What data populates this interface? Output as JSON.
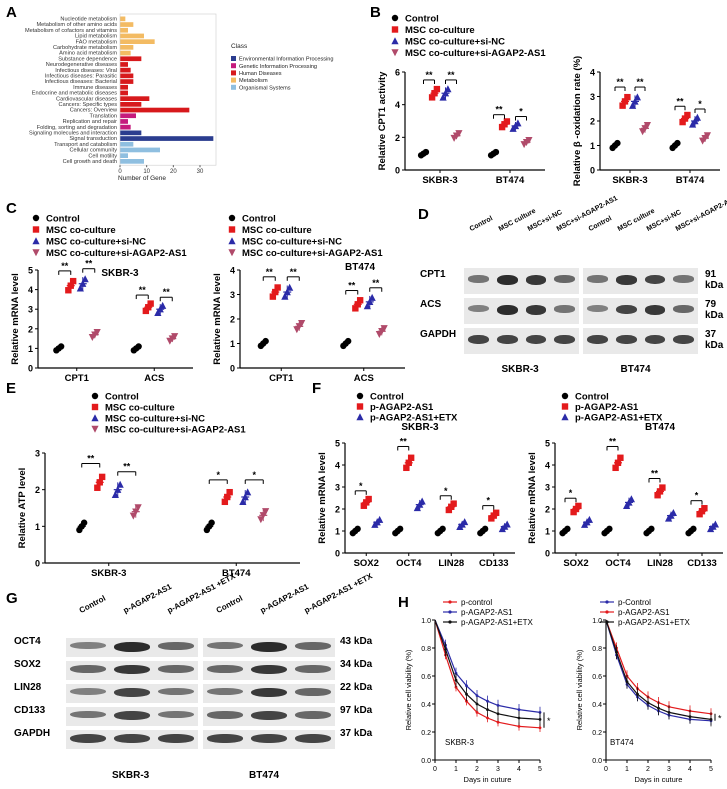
{
  "colors": {
    "control": "#000000",
    "msc": "#e31a1c",
    "sinc": "#2b2ba8",
    "si": "#b04a6a",
    "blue": "#2b2ba8"
  },
  "panels": [
    "A",
    "B",
    "C",
    "D",
    "E",
    "F",
    "G",
    "H"
  ],
  "kegg": {
    "legend_title": "Class",
    "classes": [
      "Environmental Information Processing",
      "Genetic Information Processing",
      "Human Diseases",
      "Metabolism",
      "Organismal Systems"
    ],
    "class_colors": [
      "#2b3d8f",
      "#c51b7d",
      "#d7191c",
      "#f3bb63",
      "#8fbfe0"
    ],
    "xlabel": "Number of Gene",
    "xticks": [
      "0",
      "10",
      "20",
      "30"
    ]
  },
  "chart_data": [
    {
      "panel": "A",
      "type": "bar",
      "orientation": "horizontal",
      "xlim": [
        0,
        36
      ],
      "categories": [
        "Nucleotide metabolism",
        "Metabolism of other amino acids",
        "Metabolism of cofactors and vitamins",
        "Lipid metabolism",
        "FAO metabolism",
        "Carbohydrate metabolism",
        "Amino acid metabolism",
        "Substance dependence",
        "Neurodegenerative diseases",
        "Infectious diseases: Viral",
        "Infectious diseases: Parasitic",
        "Infectious diseases: Bacterial",
        "Immune diseases",
        "Endocrine and metabolic diseases",
        "Cardiovascular diseases",
        "Cancers: Specific types",
        "Cancers: Overview",
        "Translation",
        "Replication and repair",
        "Folding, sorting and degradation",
        "Signaling molecules and interaction",
        "Signal transduction",
        "Transport and catabolism",
        "Cellular community",
        "Cell motility",
        "Cell growth and death"
      ],
      "values": [
        2,
        5,
        3,
        9,
        13,
        5,
        4,
        8,
        3,
        4,
        5,
        5,
        3,
        3,
        11,
        8,
        26,
        6,
        3,
        4,
        8,
        35,
        5,
        15,
        3,
        9
      ],
      "class_index": [
        3,
        3,
        3,
        3,
        3,
        3,
        3,
        2,
        2,
        2,
        2,
        2,
        2,
        2,
        2,
        2,
        2,
        1,
        1,
        1,
        0,
        0,
        4,
        4,
        4,
        4
      ]
    },
    {
      "panel": "B-left",
      "type": "scatter",
      "ylabel": "Relative CPT1 activity",
      "categories": [
        "SKBR-3",
        "BT474"
      ],
      "ylim": [
        0,
        6
      ],
      "yticks": [
        "0",
        "2",
        "4",
        "6"
      ],
      "legend": [
        "Control",
        "MSC co-culture",
        "MSC co-culture+si-NC",
        "MSC co-culture+si-AGAP2-AS1"
      ],
      "series": [
        {
          "name": "Control",
          "values": [
            1.0,
            1.0
          ]
        },
        {
          "name": "MSC co-culture",
          "values": [
            4.7,
            2.8
          ]
        },
        {
          "name": "MSC co-culture+si-NC",
          "values": [
            4.7,
            2.7
          ]
        },
        {
          "name": "MSC co-culture+si-AGAP2-AS1",
          "values": [
            2.1,
            1.7
          ]
        }
      ],
      "sig": [
        "**",
        "**",
        "**",
        "*"
      ]
    },
    {
      "panel": "B-right",
      "type": "scatter",
      "ylabel": "Relative β -oxidation rate (%)",
      "categories": [
        "SKBR-3",
        "BT474"
      ],
      "ylim": [
        0,
        4
      ],
      "yticks": [
        "0",
        "1",
        "2",
        "3",
        "4"
      ],
      "legend": [
        "Control",
        "MSC co-culture",
        "MSC co-culture+si-NC",
        "MSC co-culture+si-AGAP2-AS1"
      ],
      "series": [
        {
          "name": "Control",
          "values": [
            1.0,
            1.0
          ]
        },
        {
          "name": "MSC co-culture",
          "values": [
            2.8,
            2.1
          ]
        },
        {
          "name": "MSC co-culture+si-NC",
          "values": [
            2.8,
            2.0
          ]
        },
        {
          "name": "MSC co-culture+si-AGAP2-AS1",
          "values": [
            1.7,
            1.3
          ]
        }
      ],
      "sig": [
        "**",
        "**",
        "**",
        "*"
      ]
    },
    {
      "panel": "C-left",
      "type": "scatter",
      "ylabel": "Relative mRNA level",
      "title": "SKBR-3",
      "categories": [
        "CPT1",
        "ACS"
      ],
      "ylim": [
        0,
        5
      ],
      "yticks": [
        "0",
        "1",
        "2",
        "3",
        "4",
        "5"
      ],
      "legend": [
        "Control",
        "MSC co-culture",
        "MSC co-culture+si-NC",
        "MSC co-culture+si-AGAP2-AS1"
      ],
      "series": [
        {
          "name": "Control",
          "values": [
            1.0,
            1.0
          ]
        },
        {
          "name": "MSC co-culture",
          "values": [
            4.2,
            3.1
          ]
        },
        {
          "name": "MSC co-culture+si-NC",
          "values": [
            4.3,
            3.0
          ]
        },
        {
          "name": "MSC co-culture+si-AGAP2-AS1",
          "values": [
            1.7,
            1.5
          ]
        }
      ],
      "sig": [
        "**",
        "**",
        "**",
        "**"
      ]
    },
    {
      "panel": "C-right",
      "type": "scatter",
      "ylabel": "Relative mRNA level",
      "title": "BT474",
      "categories": [
        "CPT1",
        "ACS"
      ],
      "ylim": [
        0,
        4
      ],
      "yticks": [
        "0",
        "1",
        "2",
        "3",
        "4"
      ],
      "legend": [
        "Control",
        "MSC co-culture",
        "MSC co-culture+si-NC",
        "MSC co-culture+si-AGAP2-AS1"
      ],
      "series": [
        {
          "name": "Control",
          "values": [
            1.0,
            1.0
          ]
        },
        {
          "name": "MSC co-culture",
          "values": [
            3.1,
            2.6
          ]
        },
        {
          "name": "MSC co-culture+si-NC",
          "values": [
            3.1,
            2.7
          ]
        },
        {
          "name": "MSC co-culture+si-AGAP2-AS1",
          "values": [
            1.7,
            1.5
          ]
        }
      ],
      "sig": [
        "**",
        "**",
        "**",
        "**"
      ]
    },
    {
      "panel": "E",
      "type": "scatter",
      "ylabel": "Relative ATP level",
      "categories": [
        "SKBR-3",
        "BT474"
      ],
      "ylim": [
        0,
        3
      ],
      "yticks": [
        "0",
        "1",
        "2",
        "3"
      ],
      "legend": [
        "Control",
        "MSC co-culture",
        "MSC co-culture+si-NC",
        "MSC co-culture+si-AGAP2-AS1"
      ],
      "series": [
        {
          "name": "Control",
          "values": [
            1.0,
            1.0
          ]
        },
        {
          "name": "MSC co-culture",
          "values": [
            2.2,
            1.8
          ]
        },
        {
          "name": "MSC co-culture+si-NC",
          "values": [
            2.0,
            1.8
          ]
        },
        {
          "name": "MSC co-culture+si-AGAP2-AS1",
          "values": [
            1.4,
            1.3
          ]
        }
      ],
      "sig": [
        "**",
        "**",
        "*",
        "*"
      ]
    },
    {
      "panel": "F-left",
      "type": "scatter",
      "ylabel": "Relative mRNA level",
      "title": "SKBR-3",
      "categories": [
        "SOX2",
        "OCT4",
        "LIN28",
        "CD133"
      ],
      "ylim": [
        0,
        5
      ],
      "yticks": [
        "0",
        "1",
        "2",
        "3",
        "4",
        "5"
      ],
      "legend": [
        "Control",
        "p-AGAP2-AS1",
        "p-AGAP2-AS1+ETX"
      ],
      "series": [
        {
          "name": "Control",
          "values": [
            1.0,
            1.0,
            1.0,
            1.0
          ]
        },
        {
          "name": "p-AGAP2-AS1",
          "values": [
            2.3,
            4.1,
            2.1,
            1.7
          ]
        },
        {
          "name": "p-AGAP2-AS1+ETX",
          "values": [
            1.4,
            2.2,
            1.3,
            1.2
          ]
        }
      ],
      "sig": [
        "*",
        "**",
        "*",
        "*"
      ]
    },
    {
      "panel": "F-right",
      "type": "scatter",
      "ylabel": "Relative mRNA level",
      "title": "BT474",
      "categories": [
        "SOX2",
        "OCT4",
        "LIN28",
        "CD133"
      ],
      "ylim": [
        0,
        5
      ],
      "yticks": [
        "0",
        "1",
        "2",
        "3",
        "4",
        "5"
      ],
      "legend": [
        "Control",
        "p-AGAP2-AS1",
        "p-AGAP2-AS1+ETX"
      ],
      "series": [
        {
          "name": "Control",
          "values": [
            1.0,
            1.0,
            1.0,
            1.0
          ]
        },
        {
          "name": "p-AGAP2-AS1",
          "values": [
            2.0,
            4.1,
            2.8,
            1.9
          ]
        },
        {
          "name": "p-AGAP2-AS1+ETX",
          "values": [
            1.4,
            2.3,
            1.7,
            1.2
          ]
        }
      ],
      "sig": [
        "*",
        "**",
        "**",
        "*"
      ]
    },
    {
      "panel": "H-left",
      "type": "line",
      "ylabel": "Relative cell viability (%)",
      "xlabel": "Days in cuture",
      "title": "SKBR-3",
      "x": [
        0,
        0.5,
        1,
        1.5,
        2,
        2.5,
        3,
        4,
        5
      ],
      "ylim": [
        0,
        1
      ],
      "yticks": [
        "0.0",
        "0.2",
        "0.4",
        "0.6",
        "0.8",
        "1.0"
      ],
      "xticks": [
        "0",
        "1",
        "2",
        "3",
        "4",
        "5"
      ],
      "series": [
        {
          "name": "p-control",
          "values": [
            1.0,
            0.75,
            0.52,
            0.42,
            0.34,
            0.3,
            0.27,
            0.24,
            0.23
          ]
        },
        {
          "name": "p-AGAP2-AS1",
          "values": [
            1.0,
            0.82,
            0.62,
            0.53,
            0.46,
            0.42,
            0.39,
            0.36,
            0.34
          ]
        },
        {
          "name": "p-AGAP2-AS1+ETX",
          "values": [
            1.0,
            0.79,
            0.57,
            0.47,
            0.4,
            0.36,
            0.33,
            0.3,
            0.29
          ]
        }
      ],
      "sig": "*"
    },
    {
      "panel": "H-right",
      "type": "line",
      "ylabel": "Relative cell viability (%)",
      "xlabel": "Days in cuture",
      "title": "BT474",
      "x": [
        0,
        0.5,
        1,
        1.5,
        2,
        2.5,
        3,
        4,
        5
      ],
      "ylim": [
        0,
        1
      ],
      "yticks": [
        "0.0",
        "0.2",
        "0.4",
        "0.6",
        "0.8",
        "1.0"
      ],
      "xticks": [
        "0",
        "1",
        "2",
        "3",
        "4",
        "5"
      ],
      "series": [
        {
          "name": "p-Control",
          "values": [
            1.0,
            0.75,
            0.54,
            0.45,
            0.39,
            0.35,
            0.32,
            0.29,
            0.28
          ]
        },
        {
          "name": "p-AGAP2-AS1",
          "values": [
            1.0,
            0.8,
            0.6,
            0.51,
            0.45,
            0.41,
            0.38,
            0.35,
            0.33
          ]
        },
        {
          "name": "p-AGAP2-AS1+ETX",
          "values": [
            1.0,
            0.77,
            0.56,
            0.47,
            0.41,
            0.37,
            0.34,
            0.31,
            0.29
          ]
        }
      ],
      "sig": "*"
    }
  ],
  "blots": {
    "D": {
      "lanes": [
        "Control",
        "MSC culture",
        "MSC+si-NC",
        "MSC+si-AGAP2-AS1",
        "Control",
        "MSC culture",
        "MSC+si-NC",
        "MSC+si-AGAP2-AS1"
      ],
      "rows": [
        "CPT1",
        "ACS",
        "GAPDH"
      ],
      "sizes": [
        "91 kDa",
        "79 kDa",
        "37 kDa"
      ],
      "cells": [
        "SKBR-3",
        "BT474"
      ]
    },
    "G": {
      "lanes": [
        "Control",
        "p-AGAP2-AS1",
        "p-AGAP2-AS1 +ETX",
        "Control",
        "p-AGAP2-AS1",
        "p-AGAP2-AS1 +ETX"
      ],
      "rows": [
        "OCT4",
        "SOX2",
        "LIN28",
        "CD133",
        "GAPDH"
      ],
      "sizes": [
        "43 kDa",
        "34 kDa",
        "22 kDa",
        "97 kDa",
        "37 kDa"
      ],
      "cells": [
        "SKBR-3",
        "BT474"
      ]
    }
  }
}
